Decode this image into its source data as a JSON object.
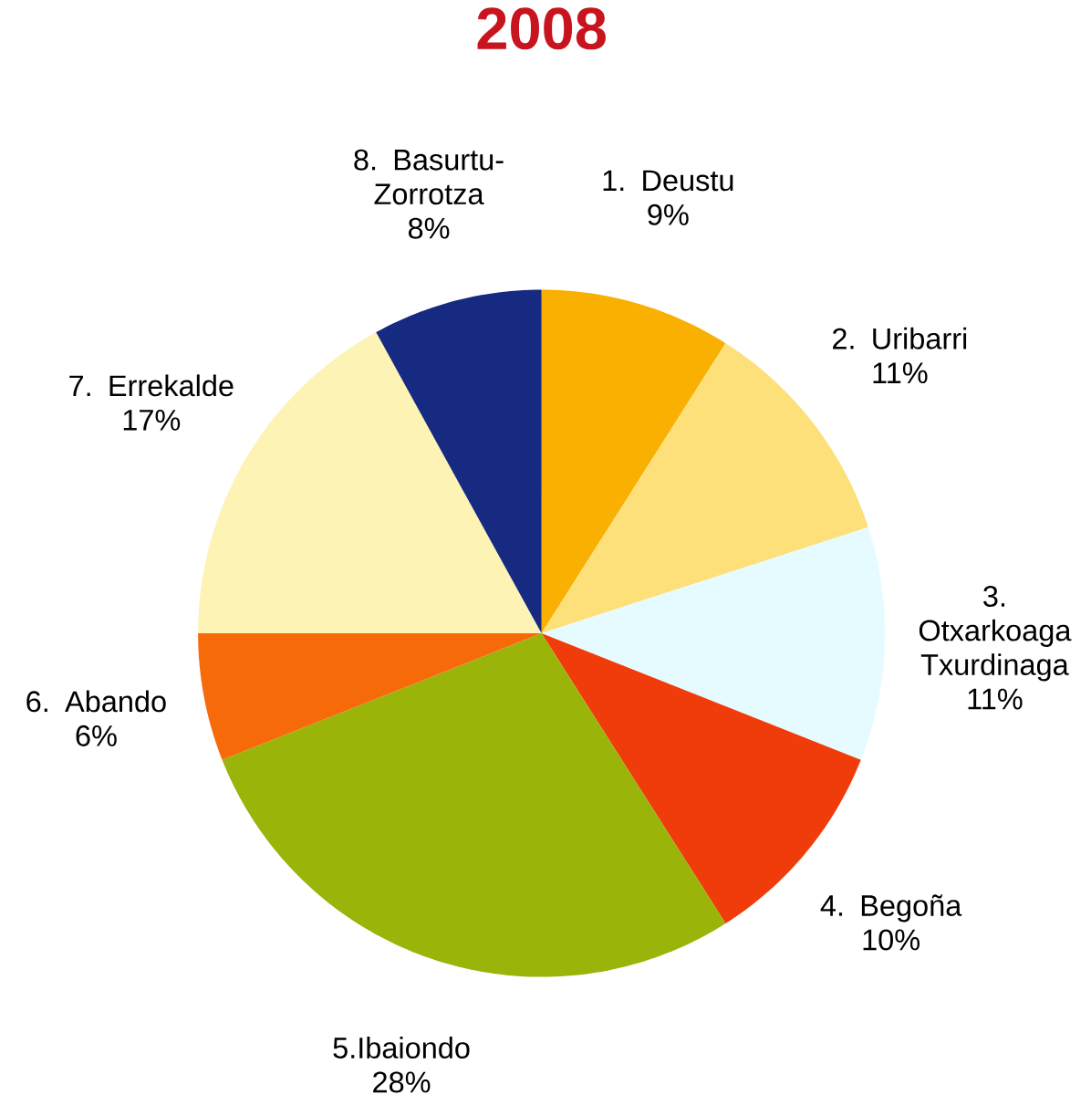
{
  "chart_data": {
    "type": "pie",
    "title": "2008",
    "categories": [
      "1. Deustu",
      "2. Uribarri",
      "3. Otxarkoaga Txurdinaga",
      "4. Begoña",
      "5.Ibaiondo",
      "6. Abando",
      "7. Errekalde",
      "8. Basurtu-Zorrotza"
    ],
    "values": [
      9,
      11,
      11,
      10,
      28,
      6,
      17,
      8
    ],
    "value_labels": [
      "9%",
      "11%",
      "11%",
      "10%",
      "28%",
      "6%",
      "17%",
      "8%"
    ],
    "colors": [
      "#f9b000",
      "#fde07a",
      "#e6fbff",
      "#f03c0a",
      "#9ab40a",
      "#f76a0a",
      "#fcf3b4",
      "#152a80"
    ]
  }
}
